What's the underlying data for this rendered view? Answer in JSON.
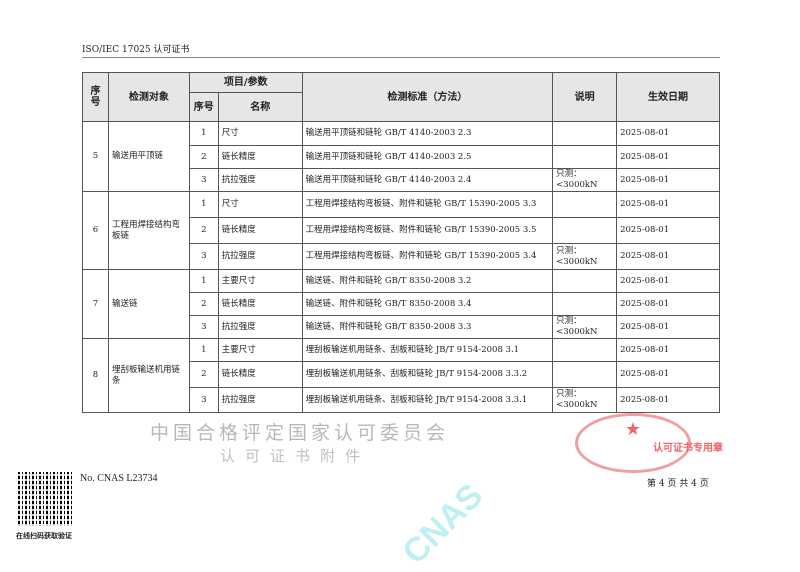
{
  "header": {
    "title": "ISO/IEC 17025 认可证书"
  },
  "table": {
    "headers": {
      "seq": "序号",
      "object": "检测对象",
      "items": "项目/参数",
      "item_seq": "序号",
      "item_name": "名称",
      "standard": "检测标准（方法）",
      "note": "说明",
      "date": "生效日期"
    },
    "groups": [
      {
        "seq": "5",
        "object": "输送用平顶链",
        "rows": [
          {
            "n": "1",
            "name": "尺寸",
            "standard": "输送用平顶链和链轮 GB/T 4140-2003 2.3",
            "note": "",
            "date": "2025-08-01"
          },
          {
            "n": "2",
            "name": "链长精度",
            "standard": "输送用平顶链和链轮 GB/T 4140-2003 2.5",
            "note": "",
            "date": "2025-08-01"
          },
          {
            "n": "3",
            "name": "抗拉强度",
            "standard": "输送用平顶链和链轮 GB/T 4140-2003 2.4",
            "note": "只测：<3000kN",
            "date": "2025-08-01"
          }
        ]
      },
      {
        "seq": "6",
        "object": "工程用焊接结构弯板链",
        "rows": [
          {
            "n": "1",
            "name": "尺寸",
            "standard": "工程用焊接结构弯板链、附件和链轮 GB/T 15390-2005 3.3",
            "note": "",
            "date": "2025-08-01"
          },
          {
            "n": "2",
            "name": "链长精度",
            "standard": "工程用焊接结构弯板链、附件和链轮 GB/T 15390-2005 3.5",
            "note": "",
            "date": "2025-08-01"
          },
          {
            "n": "3",
            "name": "抗拉强度",
            "standard": "工程用焊接结构弯板链、附件和链轮 GB/T 15390-2005 3.4",
            "note": "只测：<3000kN",
            "date": "2025-08-01"
          }
        ]
      },
      {
        "seq": "7",
        "object": "输送链",
        "rows": [
          {
            "n": "1",
            "name": "主要尺寸",
            "standard": "输送链、附件和链轮 GB/T 8350-2008 3.2",
            "note": "",
            "date": "2025-08-01"
          },
          {
            "n": "2",
            "name": "链长精度",
            "standard": "输送链、附件和链轮 GB/T 8350-2008 3.4",
            "note": "",
            "date": "2025-08-01"
          },
          {
            "n": "3",
            "name": "抗拉强度",
            "standard": "输送链、附件和链轮 GB/T 8350-2008 3.3",
            "note": "只测：<3000kN",
            "date": "2025-08-01"
          }
        ]
      },
      {
        "seq": "8",
        "object": "埋刮板输送机用链条",
        "rows": [
          {
            "n": "1",
            "name": "主要尺寸",
            "standard": "埋刮板输送机用链条、刮板和链轮 JB/T 9154-2008 3.1",
            "note": "",
            "date": "2025-08-01"
          },
          {
            "n": "2",
            "name": "链长精度",
            "standard": "埋刮板输送机用链条、刮板和链轮 JB/T 9154-2008 3.3.2",
            "note": "",
            "date": "2025-08-01"
          },
          {
            "n": "3",
            "name": "抗拉强度",
            "standard": "埋刮板输送机用链条、刮板和链轮 JB/T 9154-2008 3.3.1",
            "note": "只测：<3000kN",
            "date": "2025-08-01"
          }
        ]
      }
    ]
  },
  "watermark": {
    "text": "CNAS",
    "line1": "中国合格评定国家认可委员会",
    "line2": "认可证书附件"
  },
  "stamp": {
    "text": "认可证书专用章"
  },
  "footer": {
    "qr_caption": "在线扫码获取验证",
    "cert_no": "No. CNAS L23734",
    "page": "第 4 页 共 4 页"
  },
  "colors": {
    "watermark": "#bff0f0",
    "stamp": "#e66666"
  }
}
